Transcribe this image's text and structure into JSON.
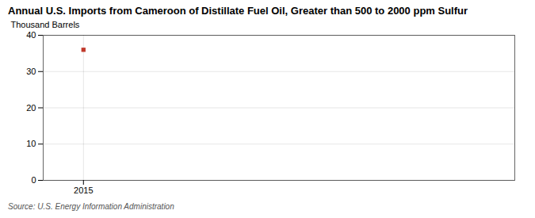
{
  "chart_data": {
    "type": "scatter",
    "title": "Annual U.S. Imports from Cameroon of Distillate Fuel Oil, Greater than 500 to 2000 ppm Sulfur",
    "ylabel": "Thousand Barrels",
    "source": "Source: U.S. Energy Information Administration",
    "x": [
      2015
    ],
    "values": [
      36
    ],
    "color": "#c0392b",
    "marker": "square",
    "xlim": [
      2014.3,
      2022.5
    ],
    "xticks": [
      2015
    ],
    "ylim": [
      0,
      40
    ],
    "yticks": [
      0,
      10,
      20,
      30,
      40
    ],
    "grid": true
  }
}
